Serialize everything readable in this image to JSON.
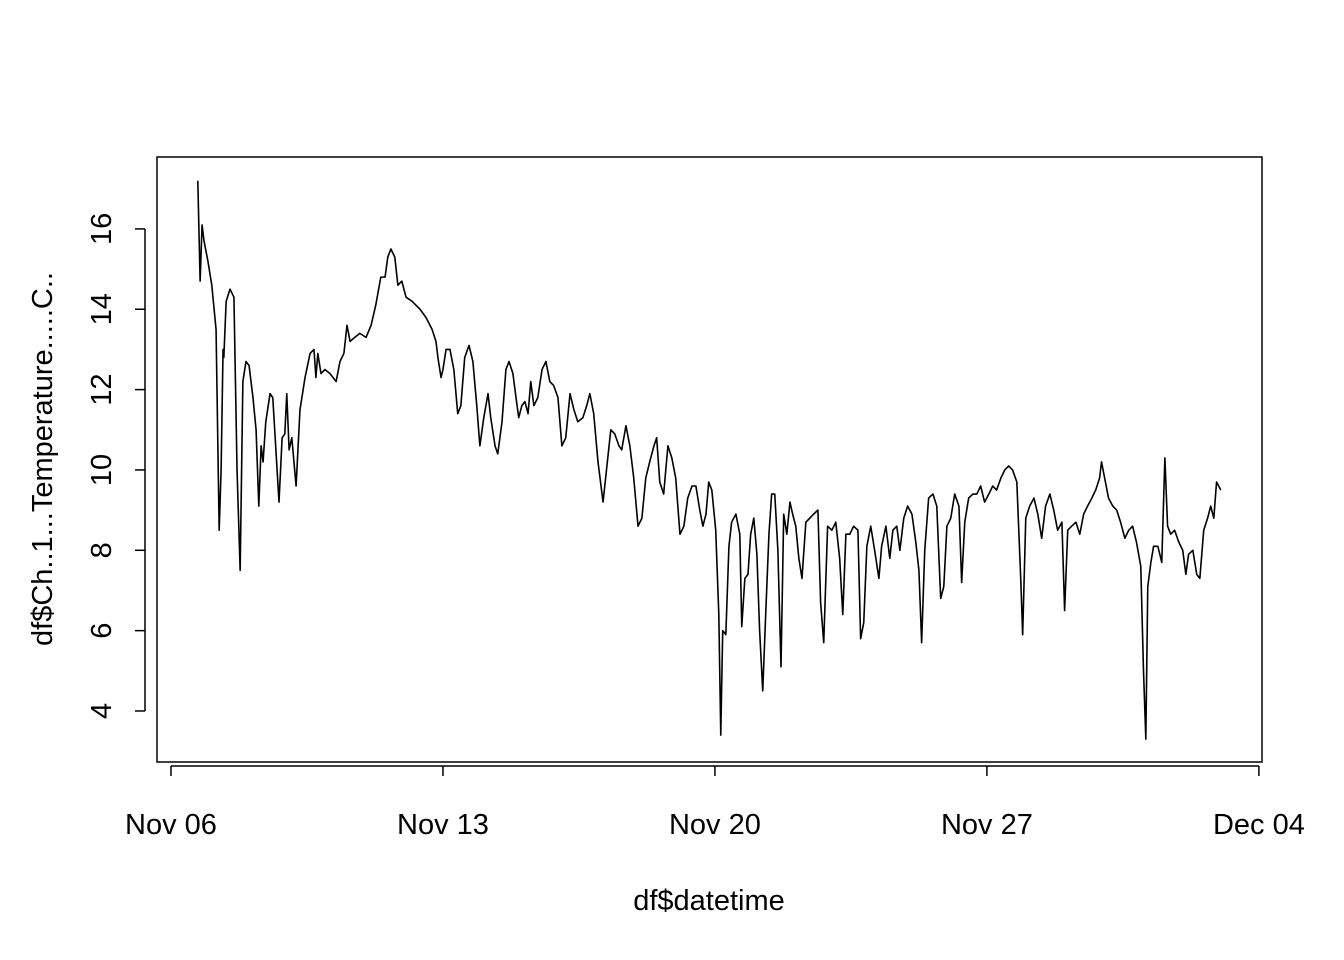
{
  "chart_data": {
    "type": "line",
    "x_label": "df$datetime",
    "y_label": "df$Ch..1...Temperature.....C..",
    "color": "#000000",
    "xlim": [
      -0.36,
      28.08
    ],
    "ylim": [
      2.73,
      17.79
    ],
    "xticks": [
      {
        "value": 0,
        "label": "Nov 06"
      },
      {
        "value": 7,
        "label": "Nov 13"
      },
      {
        "value": 14,
        "label": "Nov 20"
      },
      {
        "value": 21,
        "label": "Nov 27"
      },
      {
        "value": 28,
        "label": "Dec 04"
      }
    ],
    "yticks": [
      4,
      6,
      8,
      10,
      12,
      14,
      16
    ],
    "x": [
      0.69,
      0.75,
      0.8,
      0.85,
      0.95,
      1.05,
      1.16,
      1.24,
      1.29,
      1.34,
      1.36,
      1.42,
      1.52,
      1.62,
      1.7,
      1.78,
      1.85,
      1.93,
      2.01,
      2.11,
      2.19,
      2.26,
      2.32,
      2.37,
      2.44,
      2.55,
      2.62,
      2.7,
      2.78,
      2.86,
      2.93,
      2.98,
      3.04,
      3.11,
      3.22,
      3.32,
      3.45,
      3.58,
      3.68,
      3.73,
      3.78,
      3.86,
      3.96,
      4.09,
      4.25,
      4.35,
      4.45,
      4.53,
      4.61,
      4.73,
      4.86,
      5.02,
      5.15,
      5.27,
      5.4,
      5.51,
      5.58,
      5.66,
      5.76,
      5.84,
      5.94,
      6.05,
      6.2,
      6.41,
      6.56,
      6.72,
      6.82,
      6.87,
      6.95,
      7.0,
      7.08,
      7.18,
      7.28,
      7.38,
      7.46,
      7.56,
      7.67,
      7.77,
      7.87,
      7.95,
      8.05,
      8.16,
      8.23,
      8.34,
      8.41,
      8.52,
      8.62,
      8.7,
      8.8,
      8.88,
      8.95,
      9.03,
      9.11,
      9.19,
      9.26,
      9.34,
      9.44,
      9.55,
      9.65,
      9.75,
      9.85,
      9.96,
      10.06,
      10.16,
      10.27,
      10.37,
      10.47,
      10.6,
      10.7,
      10.78,
      10.88,
      10.99,
      11.12,
      11.22,
      11.32,
      11.42,
      11.53,
      11.6,
      11.71,
      11.81,
      11.91,
      12.02,
      12.12,
      12.22,
      12.32,
      12.43,
      12.5,
      12.58,
      12.68,
      12.79,
      12.89,
      12.99,
      13.1,
      13.2,
      13.3,
      13.41,
      13.51,
      13.61,
      13.69,
      13.77,
      13.84,
      13.92,
      14.02,
      14.1,
      14.15,
      14.2,
      14.28,
      14.36,
      14.43,
      14.54,
      14.64,
      14.69,
      14.77,
      14.85,
      14.92,
      15.0,
      15.08,
      15.15,
      15.23,
      15.31,
      15.39,
      15.46,
      15.54,
      15.62,
      15.7,
      15.77,
      15.85,
      15.93,
      16.0,
      16.08,
      16.16,
      16.24,
      16.34,
      16.44,
      16.54,
      16.65,
      16.72,
      16.8,
      16.9,
      17.01,
      17.11,
      17.21,
      17.29,
      17.37,
      17.47,
      17.57,
      17.68,
      17.75,
      17.83,
      17.91,
      18.01,
      18.11,
      18.22,
      18.29,
      18.4,
      18.5,
      18.58,
      18.68,
      18.76,
      18.86,
      18.96,
      19.07,
      19.17,
      19.25,
      19.32,
      19.4,
      19.5,
      19.61,
      19.71,
      19.81,
      19.89,
      19.97,
      20.07,
      20.17,
      20.28,
      20.35,
      20.43,
      20.53,
      20.64,
      20.74,
      20.84,
      20.94,
      21.05,
      21.15,
      21.25,
      21.36,
      21.46,
      21.56,
      21.66,
      21.77,
      21.87,
      21.92,
      22.0,
      22.1,
      22.21,
      22.31,
      22.41,
      22.51,
      22.62,
      22.72,
      22.82,
      22.93,
      23.0,
      23.08,
      23.18,
      23.29,
      23.39,
      23.49,
      23.59,
      23.7,
      23.8,
      23.9,
      23.95,
      24.03,
      24.13,
      24.24,
      24.34,
      24.44,
      24.55,
      24.65,
      24.75,
      24.85,
      24.96,
      25.03,
      25.09,
      25.14,
      25.22,
      25.29,
      25.4,
      25.5,
      25.58,
      25.65,
      25.73,
      25.83,
      25.94,
      26.04,
      26.12,
      26.19,
      26.3,
      26.4,
      26.48,
      26.58,
      26.68,
      26.76,
      26.84,
      26.91,
      27.02
    ],
    "values": [
      17.2,
      14.7,
      16.1,
      15.7,
      15.2,
      14.6,
      13.5,
      8.5,
      10,
      13,
      12.8,
      14.2,
      14.5,
      14.3,
      10,
      7.5,
      12.2,
      12.7,
      12.6,
      11.8,
      11,
      9.1,
      10.6,
      10.2,
      11.2,
      11.9,
      11.8,
      10.5,
      9.2,
      10.8,
      10.9,
      11.9,
      10.5,
      10.8,
      9.6,
      11.5,
      12.3,
      12.9,
      13,
      12.3,
      12.9,
      12.4,
      12.5,
      12.4,
      12.2,
      12.7,
      12.9,
      13.6,
      13.2,
      13.3,
      13.4,
      13.3,
      13.6,
      14.1,
      14.8,
      14.8,
      15.3,
      15.5,
      15.3,
      14.6,
      14.7,
      14.3,
      14.2,
      14.0,
      13.8,
      13.5,
      13.2,
      12.8,
      12.3,
      12.5,
      13,
      13,
      12.5,
      11.4,
      11.6,
      12.8,
      13.1,
      12.7,
      11.6,
      10.6,
      11.3,
      11.9,
      11.3,
      10.6,
      10.4,
      11.2,
      12.5,
      12.7,
      12.4,
      11.8,
      11.3,
      11.6,
      11.7,
      11.4,
      12.2,
      11.6,
      11.8,
      12.5,
      12.7,
      12.2,
      12.1,
      11.8,
      10.6,
      10.8,
      11.9,
      11.5,
      11.2,
      11.3,
      11.6,
      11.9,
      11.4,
      10.2,
      9.2,
      10.1,
      11,
      10.9,
      10.6,
      10.5,
      11.1,
      10.6,
      9.8,
      8.6,
      8.8,
      9.8,
      10.2,
      10.6,
      10.8,
      9.7,
      9.4,
      10.6,
      10.3,
      9.8,
      8.4,
      8.6,
      9.3,
      9.6,
      9.6,
      9,
      8.6,
      8.9,
      9.7,
      9.5,
      8.5,
      6.4,
      3.4,
      6,
      5.9,
      8.1,
      8.7,
      8.9,
      8.4,
      6.1,
      7.3,
      7.4,
      8.4,
      8.8,
      7.9,
      6,
      4.5,
      6.5,
      8.4,
      9.4,
      9.4,
      8,
      5.1,
      8.9,
      8.4,
      9.2,
      8.9,
      8.6,
      7.8,
      7.3,
      8.7,
      8.8,
      8.9,
      9,
      6.7,
      5.7,
      8.6,
      8.5,
      8.7,
      7.8,
      6.4,
      8.4,
      8.4,
      8.6,
      8.5,
      5.8,
      6.2,
      8.1,
      8.6,
      8.0,
      7.3,
      8.1,
      8.6,
      7.8,
      8.5,
      8.6,
      8.0,
      8.8,
      9.1,
      8.9,
      8.2,
      7.5,
      5.7,
      8.0,
      9.3,
      9.4,
      9.1,
      6.8,
      7.1,
      8.6,
      8.8,
      9.4,
      9.1,
      7.2,
      8.7,
      9.3,
      9.4,
      9.4,
      9.6,
      9.2,
      9.4,
      9.6,
      9.5,
      9.8,
      10,
      10.1,
      10,
      9.7,
      7.3,
      5.9,
      8.8,
      9.1,
      9.3,
      8.9,
      8.3,
      9.1,
      9.4,
      9.0,
      8.5,
      8.7,
      6.5,
      8.5,
      8.6,
      8.7,
      8.4,
      8.9,
      9.1,
      9.3,
      9.5,
      9.8,
      10.2,
      9.8,
      9.3,
      9.1,
      9.0,
      8.7,
      8.3,
      8.5,
      8.6,
      8.2,
      7.6,
      5,
      3.3,
      7.1,
      7.7,
      8.1,
      8.1,
      7.7,
      10.3,
      8.6,
      8.4,
      8.5,
      8.2,
      8.0,
      7.4,
      7.9,
      8.0,
      7.4,
      7.3,
      8.5,
      8.8,
      9.1,
      8.8,
      9.7,
      9.5
    ]
  }
}
